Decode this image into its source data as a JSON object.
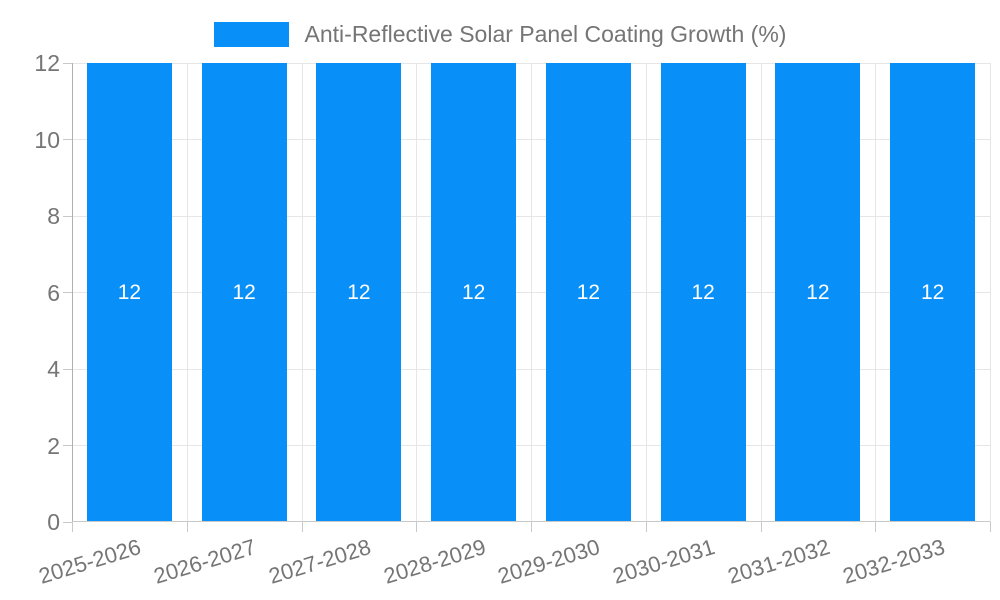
{
  "chart_data": {
    "type": "bar",
    "title": "Anti-Reflective Solar Panel Coating Growth (%)",
    "legend": {
      "position": "top",
      "label": "Anti-Reflective Solar Panel Coating Growth (%)"
    },
    "categories": [
      "2025-2026",
      "2026-2027",
      "2027-2028",
      "2028-2029",
      "2029-2030",
      "2030-2031",
      "2031-2032",
      "2032-2033"
    ],
    "series": [
      {
        "name": "Anti-Reflective Solar Panel Coating Growth (%)",
        "values": [
          12,
          12,
          12,
          12,
          12,
          12,
          12,
          12
        ]
      }
    ],
    "bar_labels": [
      "12",
      "12",
      "12",
      "12",
      "12",
      "12",
      "12",
      "12"
    ],
    "xlabel": "",
    "ylabel": "",
    "y_ticks": [
      0,
      2,
      4,
      6,
      8,
      10,
      12
    ],
    "ylim": [
      0,
      12
    ],
    "grid": true,
    "colors": {
      "bar": "#0890F8",
      "grid": "#e6e6e6",
      "axis": "#b0b0b0",
      "tick": "#c9c9c9",
      "tick_text": "#757575",
      "bar_label_text": "#ffffff",
      "legend_text": "#757575"
    }
  }
}
